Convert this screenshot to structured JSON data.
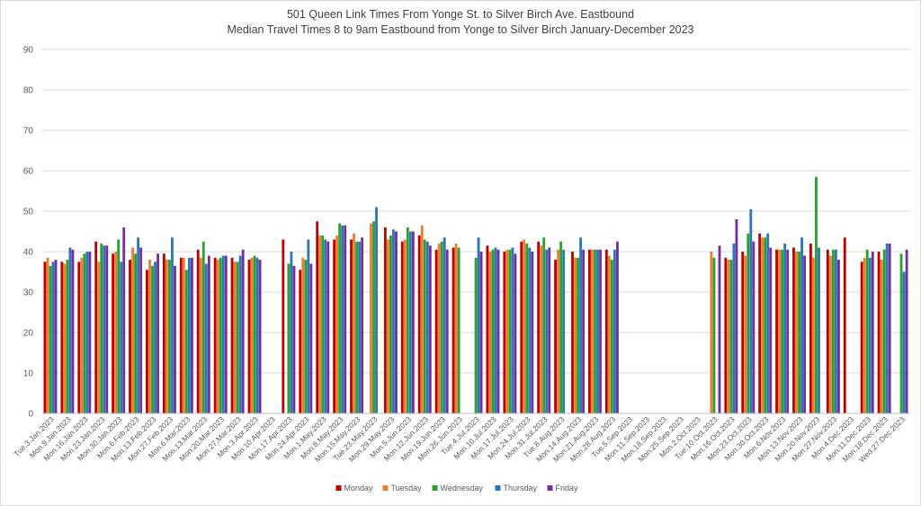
{
  "chart_data": {
    "type": "bar",
    "title": "501 Queen Link Times From Yonge St. to Silver Birch Ave. Eastbound",
    "subtitle": "Median Travel Times 8 to 9am Eastbound from Yonge to Silver Birch January-December 2023",
    "xlabel": "",
    "ylabel": "",
    "ylim": [
      0,
      90
    ],
    "yticks": [
      0,
      10,
      20,
      30,
      40,
      50,
      60,
      70,
      80,
      90
    ],
    "grid": true,
    "legend_position": "bottom",
    "categories": [
      "Tue.3.Jan.2023",
      "Mon.9.Jan.2023",
      "Mon.16.Jan.2023",
      "Mon.23.Jan.2023",
      "Mon.30.Jan.2023",
      "Mon.6.Feb.2023",
      "Mon.13.Feb.2023",
      "Mon.27.Feb.2023",
      "Mon.6.Mar.2023",
      "Mon.13.Mar.2023",
      "Mon.20.Mar.2023",
      "Mon.27.Mar.2023",
      "Mon.3.Apr.2023",
      "Mon.10.Apr.2023",
      "Mon.17.Apr.2023",
      "Mon.24.Apr.2023",
      "Mon.1.May.2023",
      "Mon.8.May.2023",
      "Mon.15.May.2023",
      "Tue.23.May.2023",
      "Mon.29.May.2023",
      "Mon.5.Jun.2023",
      "Mon.12.Jun.2023",
      "Mon.19.Jun.2023",
      "Mon.26.Jun.2023",
      "Tue.4.Jul.2023",
      "Mon.10.Jul.2023",
      "Mon.17.Jul.2023",
      "Mon.24.Jul.2023",
      "Mon.31.Jul.2023",
      "Tue.8.Aug.2023",
      "Mon.14.Aug.2023",
      "Mon.21.Aug.2023",
      "Mon.28.Aug.2023",
      "Tue.5.Sep.2023",
      "Mon.11.Sep.2023",
      "Mon.18.Sep.2023",
      "Mon.25.Sep.2023",
      "Mon.2.Oct.2023",
      "Tue.10.Oct.2023",
      "Mon.16.Oct.2023",
      "Mon.23.Oct.2023",
      "Mon.30.Oct.2023",
      "Mon.6.Nov.2023",
      "Mon.13.Nov.2023",
      "Mon.20.Nov.2023",
      "Mon.27.Nov.2023",
      "Mon.4.Dec.2023",
      "Mon.11.Dec.2023",
      "Mon.18.Dec.2023",
      "Wed.27.Dec.2023"
    ],
    "series": [
      {
        "name": "Monday",
        "color": "#c00000",
        "values": [
          37.5,
          37.5,
          37.5,
          42.5,
          39.5,
          38,
          35.5,
          39.5,
          38.5,
          40.5,
          38.5,
          38.5,
          38,
          null,
          43,
          35.5,
          47.5,
          43,
          43,
          null,
          46,
          42.5,
          44,
          40.5,
          41,
          null,
          41.5,
          40,
          42.5,
          42.5,
          38,
          40,
          40.5,
          40.5,
          null,
          null,
          null,
          null,
          null,
          null,
          38.5,
          40,
          44.5,
          40.5,
          41,
          42,
          40.5,
          43.5,
          37.5,
          40,
          null
        ]
      },
      {
        "name": "Tuesday",
        "color": "#ed7d31",
        "values": [
          38.5,
          37,
          38.5,
          37.5,
          40,
          41,
          38,
          38,
          38.5,
          38.5,
          38,
          37.5,
          38.5,
          null,
          null,
          38.5,
          44,
          44,
          44.5,
          47,
          43,
          43,
          46.5,
          42,
          42,
          null,
          40,
          40.5,
          43,
          41.5,
          40.5,
          38.5,
          40.5,
          39,
          null,
          null,
          null,
          null,
          null,
          40,
          38,
          39,
          43.5,
          40.5,
          40,
          38.5,
          39,
          null,
          38.5,
          38,
          null
        ]
      },
      {
        "name": "Wednesday",
        "color": "#2ca02c",
        "values": [
          36.5,
          38,
          39.5,
          42,
          43,
          39.5,
          36.5,
          38,
          35.5,
          42.5,
          38.5,
          37.5,
          39,
          null,
          37,
          38,
          44,
          47,
          42.5,
          47.5,
          44,
          46,
          43,
          42.5,
          41,
          38.5,
          40.5,
          40.5,
          42,
          43.5,
          42.5,
          38.5,
          40.5,
          38,
          null,
          null,
          null,
          null,
          null,
          38.5,
          38,
          44.5,
          43.5,
          40.5,
          40,
          58.5,
          40.5,
          null,
          40.5,
          40.5,
          39.5
        ]
      },
      {
        "name": "Thursday",
        "color": "#2e75b6",
        "values": [
          37.5,
          41,
          40,
          41.5,
          37.5,
          43.5,
          37.5,
          43.5,
          38.5,
          37,
          39,
          39,
          38.5,
          null,
          40,
          43,
          43,
          46.5,
          42.5,
          51,
          45.5,
          45,
          42.5,
          43.5,
          null,
          43.5,
          41,
          41,
          41,
          40.5,
          40.5,
          43.5,
          40.5,
          40.5,
          null,
          null,
          null,
          null,
          null,
          null,
          42,
          50.5,
          44.5,
          42,
          43.5,
          41,
          40.5,
          null,
          38.5,
          42,
          35
        ]
      },
      {
        "name": "Friday",
        "color": "#7030a0",
        "values": [
          38,
          40.5,
          40,
          41.5,
          46,
          41,
          39.5,
          36.5,
          38.5,
          39,
          39,
          40.5,
          38,
          null,
          36.5,
          37,
          42.5,
          46.5,
          43.5,
          null,
          45,
          45,
          41.5,
          40.5,
          null,
          40,
          40.5,
          39.5,
          40,
          41,
          null,
          40.5,
          40.5,
          42.5,
          null,
          null,
          null,
          null,
          null,
          41.5,
          48,
          42.5,
          41,
          40.5,
          39,
          null,
          38,
          null,
          40,
          42,
          40.5
        ]
      }
    ]
  }
}
